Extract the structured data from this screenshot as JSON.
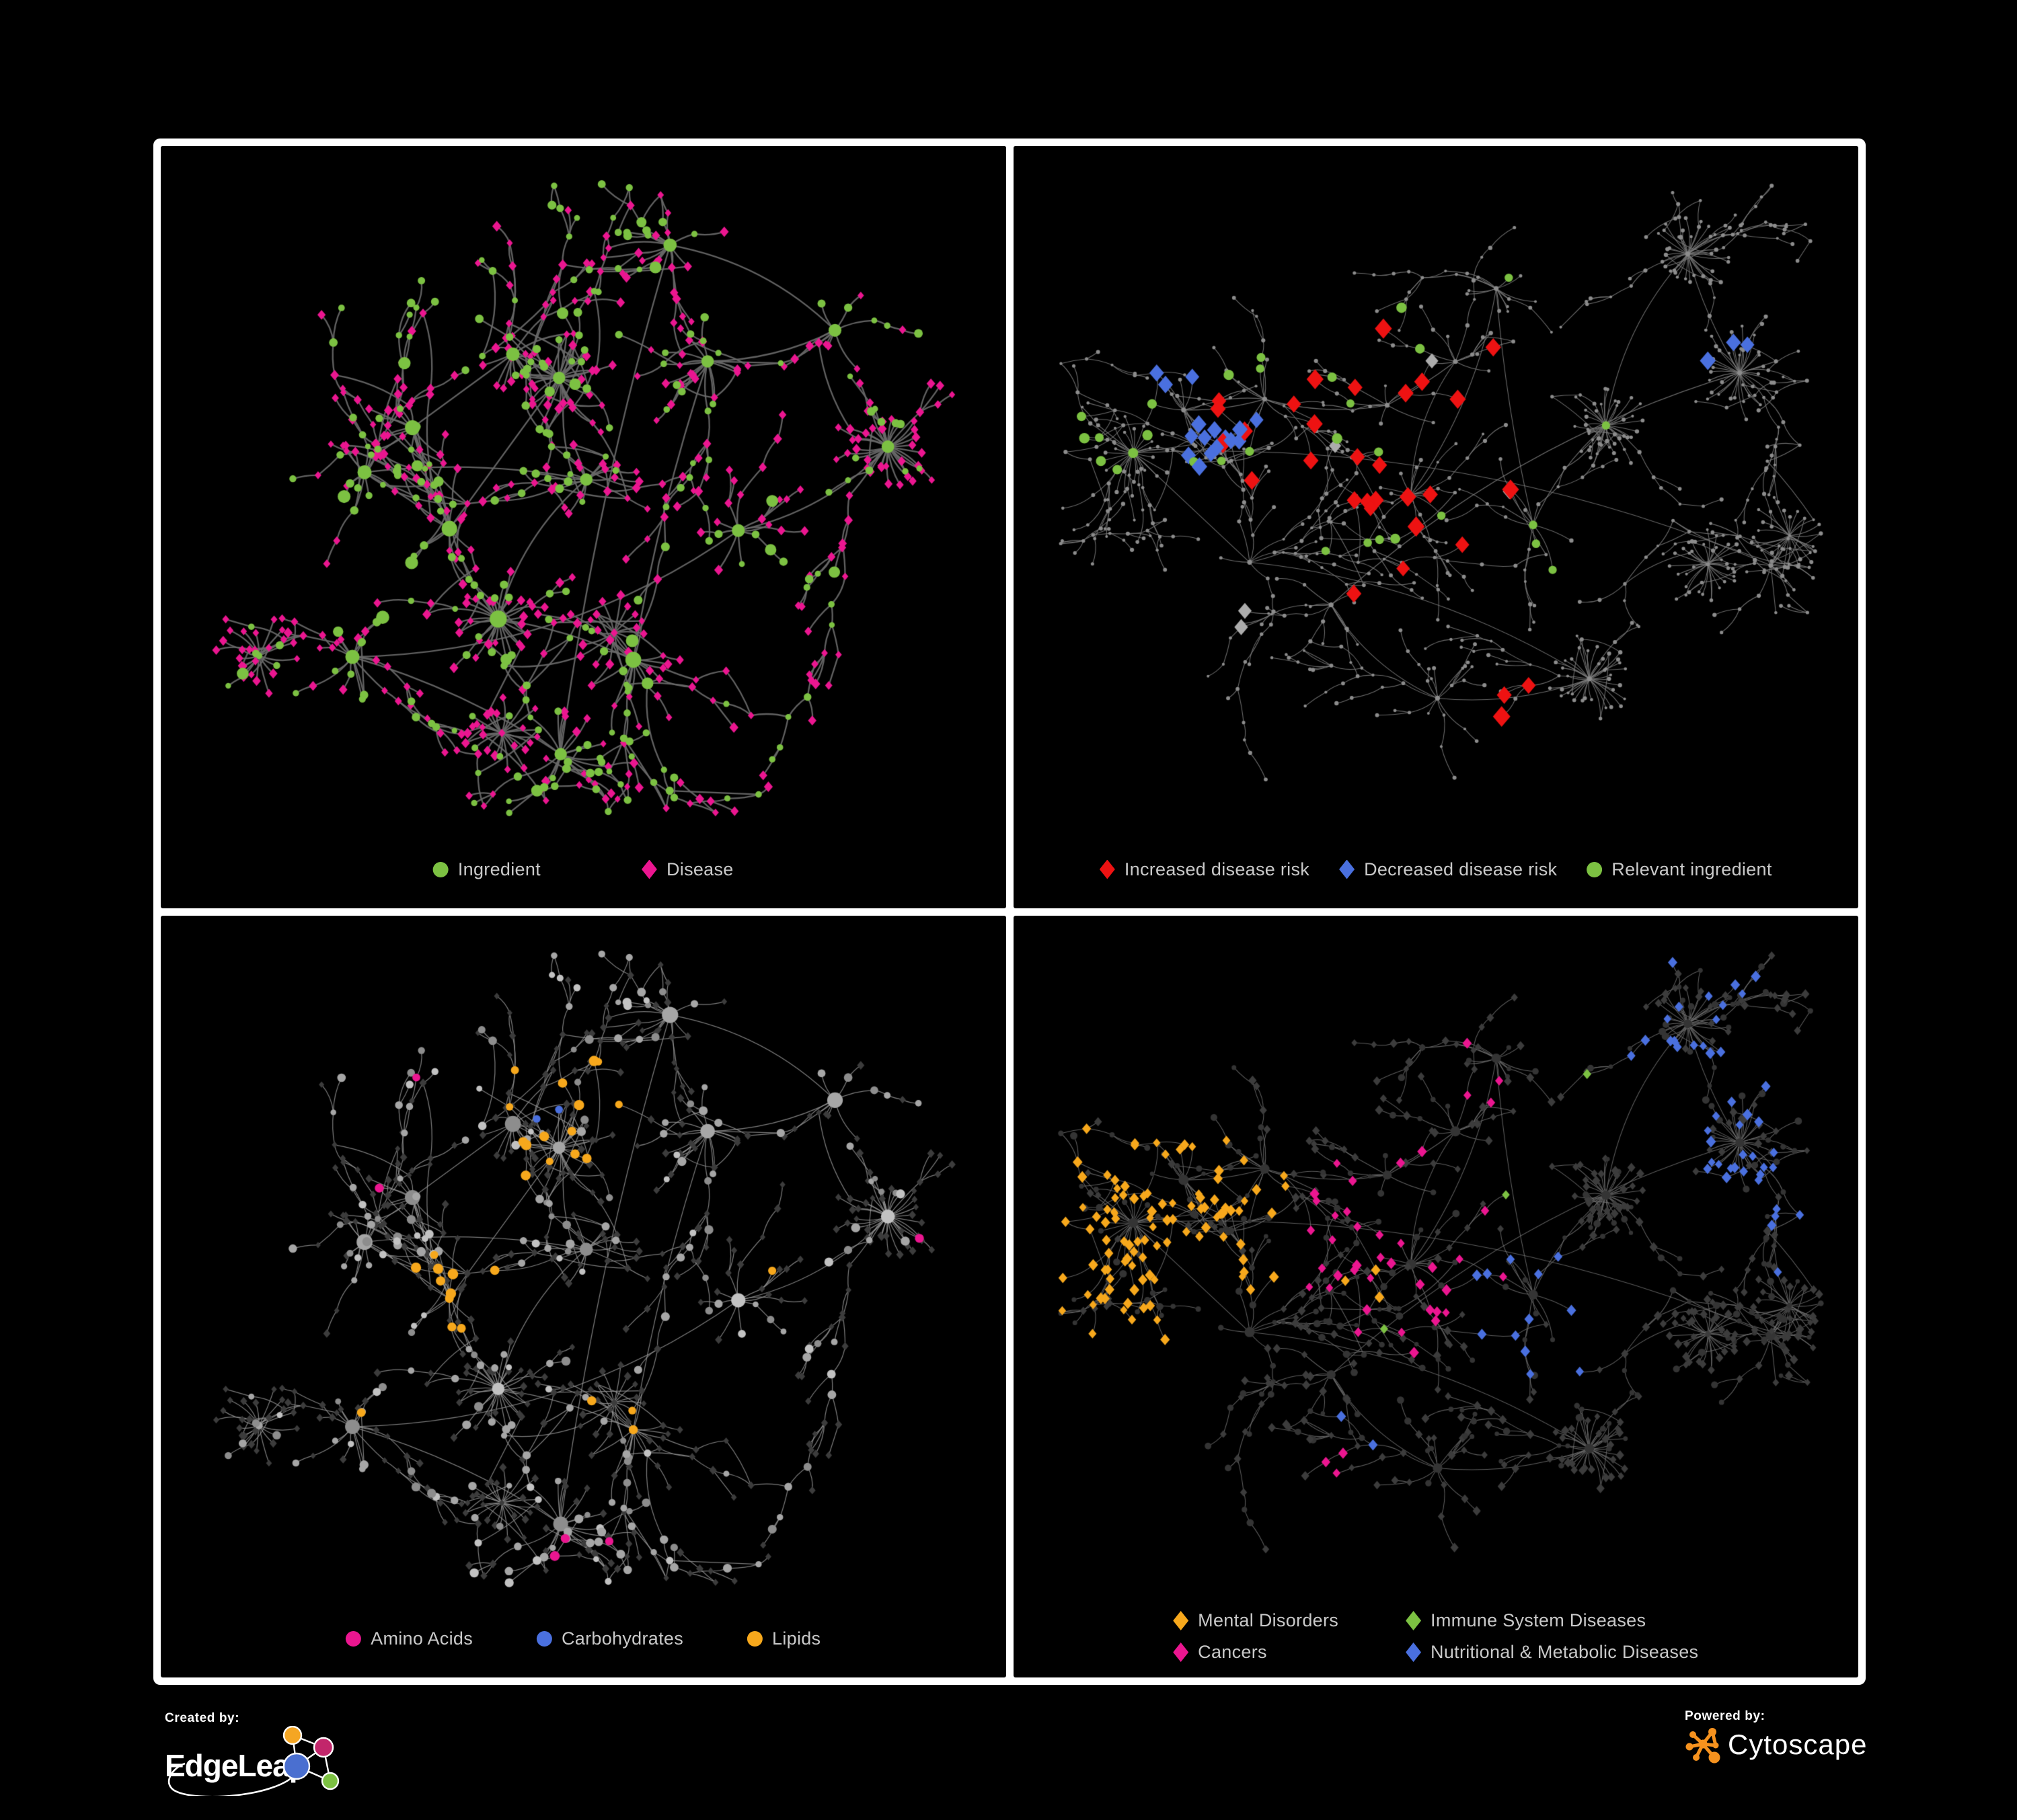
{
  "figure": {
    "background": "#000000",
    "panels": [
      {
        "name": "ingredient-disease-network",
        "legend": [
          {
            "label": "Ingredient",
            "shape": "circle",
            "color": "#7CC142"
          },
          {
            "label": "Disease",
            "shape": "diamond",
            "color": "#EB1690"
          }
        ]
      },
      {
        "name": "disease-risk-network",
        "legend": [
          {
            "label": "Increased disease risk",
            "shape": "diamond",
            "color": "#EE1212"
          },
          {
            "label": "Decreased disease risk",
            "shape": "diamond",
            "color": "#4A70DF"
          },
          {
            "label": "Relevant ingredient",
            "shape": "circle",
            "color": "#7CC142"
          }
        ]
      },
      {
        "name": "nutrient-class-network",
        "legend": [
          {
            "label": "Amino Acids",
            "shape": "circle",
            "color": "#EB1690"
          },
          {
            "label": "Carbohydrates",
            "shape": "circle",
            "color": "#4A70DF"
          },
          {
            "label": "Lipids",
            "shape": "circle",
            "color": "#F7A81C"
          }
        ]
      },
      {
        "name": "disease-class-network",
        "legend": [
          {
            "label": "Mental Disorders",
            "shape": "diamond",
            "color": "#F7A81C"
          },
          {
            "label": "Immune System Diseases",
            "shape": "diamond",
            "color": "#7CC142"
          },
          {
            "label": "Cancers",
            "shape": "diamond",
            "color": "#EB1690"
          },
          {
            "label": "Nutritional & Metabolic Diseases",
            "shape": "diamond",
            "color": "#4A70DF"
          }
        ]
      }
    ],
    "footer": {
      "created_by": "Created by:",
      "created_by_brand": "EdgeLeap",
      "powered_by": "Powered by:",
      "powered_by_brand": "Cytoscape",
      "edgeleap_logo_colors": {
        "orange": "#F5A623",
        "magenta": "#C2266B",
        "blue": "#4A6FD0",
        "green": "#7CC142"
      },
      "cytoscape_logo_color": "#F6921E"
    },
    "network_render": {
      "left_seed": 1337,
      "right_seed": 9042,
      "green": "#7CC142",
      "pink": "#EB1690",
      "red": "#EE1212",
      "blue": "#4A70DF",
      "orange": "#F7A81C",
      "silver": "#ACACAC",
      "gray_dot": "#8C8C8C",
      "gray_dark_diamond": "#3C3C3C",
      "gray_dark_circle": "#343434",
      "edge_tl": "#696969",
      "edge_tr": "#7C7C7C",
      "edge_bl": "#999999",
      "edge_br": "#6E6E6E"
    }
  }
}
